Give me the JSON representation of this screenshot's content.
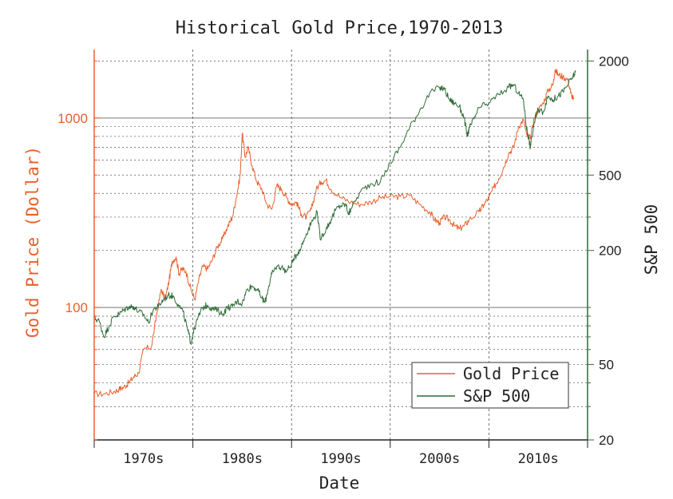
{
  "chart_data": {
    "type": "line",
    "title": "Historical Gold Price,1970-2013",
    "xlabel": "Date",
    "ylabel_left": "Gold Price (Dollar)",
    "ylabel_right": "S&P 500",
    "x_range": [
      1965,
      2015
    ],
    "x_tick_labels": [
      "1970s",
      "1980s",
      "1990s",
      "2000s",
      "2010s"
    ],
    "left_axis": {
      "scale": "log",
      "range": [
        20,
        2300
      ],
      "tick_values": [
        100,
        1000
      ],
      "tick_labels": [
        "100",
        "1000"
      ]
    },
    "right_axis": {
      "scale": "log",
      "range": [
        20,
        2300
      ],
      "tick_values": [
        20,
        50,
        200,
        500,
        2000
      ],
      "tick_labels": [
        "20",
        "50",
        "200",
        "500",
        "2000"
      ]
    },
    "grid": true,
    "legend_position": "bottom-right",
    "colors": {
      "gold": "#e8602c",
      "sp500": "#2e6b36",
      "grid": "#555555",
      "major_grid": "#777777"
    },
    "series": [
      {
        "name": "Gold Price",
        "x": [
          1965.0,
          1966.0,
          1967.0,
          1967.5,
          1968.0,
          1968.5,
          1969.0,
          1969.5,
          1970.0,
          1970.8,
          1971.3,
          1971.8,
          1972.2,
          1972.6,
          1972.9,
          1973.3,
          1973.6,
          1973.9,
          1974.3,
          1974.8,
          1975.2,
          1975.6,
          1976.0,
          1976.5,
          1977.0,
          1977.5,
          1978.0,
          1978.5,
          1979.0,
          1979.4,
          1979.8,
          1980.0,
          1980.3,
          1980.6,
          1981.0,
          1981.5,
          1982.0,
          1982.5,
          1983.0,
          1983.5,
          1984.0,
          1984.5,
          1985.0,
          1985.5,
          1986.0,
          1986.5,
          1987.0,
          1987.5,
          1988.0,
          1988.5,
          1989.0,
          1990.0,
          1991.0,
          1992.0,
          1993.0,
          1994.0,
          1995.0,
          1996.0,
          1997.0,
          1998.0,
          1999.0,
          1999.5,
          2000.0,
          2000.5,
          2001.0,
          2001.5,
          2002.0,
          2002.5,
          2003.0,
          2004.0,
          2004.5,
          2005.0,
          2005.5,
          2006.0,
          2006.5,
          2007.0,
          2007.5,
          2008.0,
          2008.5,
          2008.8,
          2009.2,
          2009.6,
          2010.0,
          2010.5,
          2011.0,
          2011.5,
          2011.7,
          2012.0,
          2012.5,
          2013.0,
          2013.3,
          2013.6
        ],
        "y": [
          35,
          35,
          36,
          37,
          38,
          40,
          43,
          45,
          60,
          62,
          90,
          125,
          110,
          140,
          175,
          185,
          150,
          160,
          155,
          125,
          110,
          140,
          165,
          160,
          180,
          210,
          230,
          265,
          300,
          380,
          500,
          830,
          620,
          700,
          560,
          460,
          420,
          350,
          330,
          440,
          420,
          380,
          350,
          360,
          310,
          300,
          330,
          420,
          460,
          470,
          420,
          380,
          360,
          350,
          360,
          380,
          385,
          385,
          390,
          350,
          320,
          290,
          280,
          300,
          290,
          270,
          260,
          270,
          290,
          320,
          350,
          380,
          430,
          480,
          550,
          650,
          700,
          900,
          980,
          820,
          780,
          1000,
          1100,
          1200,
          1400,
          1500,
          1800,
          1700,
          1650,
          1600,
          1350,
          1250
        ]
      },
      {
        "name": "S&P 500",
        "x": [
          1965.0,
          1965.5,
          1966.0,
          1966.5,
          1967.0,
          1967.5,
          1968.0,
          1968.5,
          1969.0,
          1969.5,
          1970.0,
          1970.5,
          1971.0,
          1971.5,
          1972.0,
          1972.5,
          1973.0,
          1973.5,
          1974.0,
          1974.5,
          1974.8,
          1975.0,
          1975.5,
          1976.0,
          1976.5,
          1977.0,
          1977.5,
          1978.0,
          1978.5,
          1979.0,
          1979.5,
          1980.0,
          1980.5,
          1981.0,
          1981.5,
          1982.0,
          1982.3,
          1982.7,
          1983.0,
          1983.5,
          1984.0,
          1984.5,
          1985.0,
          1985.5,
          1986.0,
          1986.5,
          1987.0,
          1987.6,
          1987.9,
          1988.5,
          1989.0,
          1989.5,
          1990.0,
          1990.5,
          1990.8,
          1991.0,
          1992.0,
          1993.0,
          1994.0,
          1995.0,
          1996.0,
          1997.0,
          1998.0,
          1999.0,
          2000.0,
          2000.5,
          2001.0,
          2001.5,
          2002.0,
          2002.5,
          2002.8,
          2003.0,
          2003.5,
          2004.0,
          2005.0,
          2006.0,
          2007.0,
          2007.5,
          2008.0,
          2008.5,
          2008.8,
          2009.0,
          2009.2,
          2009.6,
          2010.0,
          2010.5,
          2011.0,
          2011.5,
          2012.0,
          2012.5,
          2013.0,
          2013.5,
          2013.8
        ],
        "y": [
          88,
          85,
          70,
          80,
          90,
          92,
          97,
          101,
          101,
          95,
          92,
          83,
          98,
          101,
          110,
          116,
          115,
          104,
          95,
          75,
          65,
          72,
          88,
          100,
          103,
          98,
          97,
          92,
          100,
          101,
          108,
          105,
          125,
          130,
          125,
          112,
          106,
          130,
          150,
          165,
          163,
          155,
          170,
          190,
          210,
          245,
          280,
          320,
          230,
          260,
          290,
          330,
          345,
          350,
          310,
          330,
          410,
          450,
          460,
          580,
          700,
          900,
          1100,
          1350,
          1450,
          1420,
          1250,
          1200,
          1150,
          1000,
          800,
          880,
          990,
          1130,
          1200,
          1330,
          1450,
          1500,
          1350,
          1250,
          900,
          800,
          700,
          950,
          1110,
          1080,
          1300,
          1250,
          1300,
          1380,
          1500,
          1650,
          1750
        ]
      }
    ]
  }
}
